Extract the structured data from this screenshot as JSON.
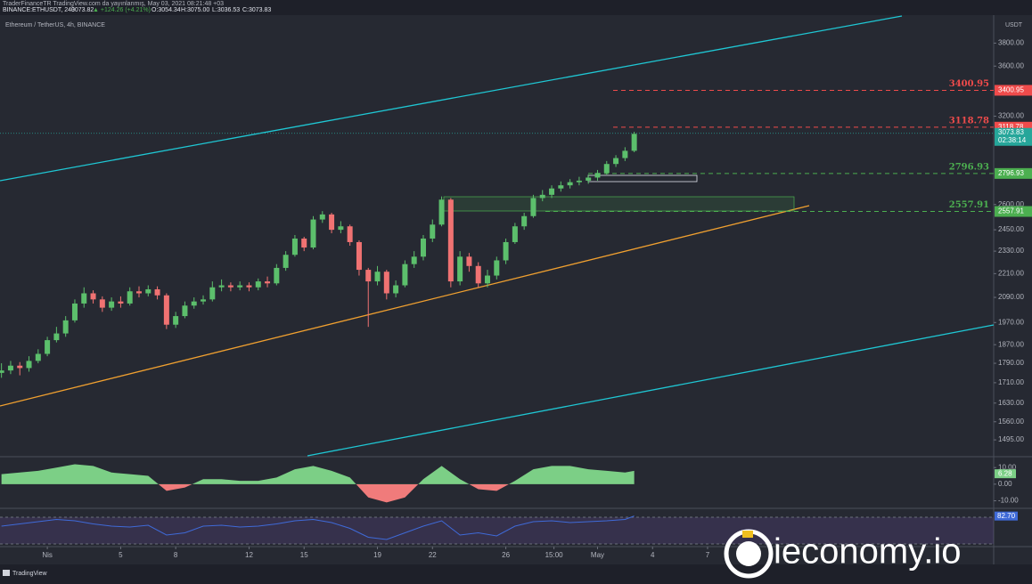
{
  "header": {
    "publisher": "TraderFinanceTR TradingView.com da yayınlanmış, May 03, 2021 08:21:48 +03",
    "symbol": "BINANCE:ETHUSDT, 240",
    "last": "3073.82",
    "change": "▲ +124.26 (+4.21%)",
    "open": "O:3054.34",
    "high": "H:3075.00",
    "low": "L:3036.53",
    "close": "C:3073.83"
  },
  "chart_data": {
    "type": "candlestick",
    "title": "Ethereum / TetherUS, 4h, BINANCE",
    "y_unit": "USDT",
    "log_scale": true,
    "grid": false,
    "up_color": "#5cbf6c",
    "down_color": "#f07272",
    "x": [
      -2.5,
      -2,
      -1.5,
      -1,
      -0.5,
      0,
      0.5,
      1,
      1.5,
      2,
      2.5,
      3,
      3.5,
      4,
      4.5,
      5,
      5.5,
      6,
      6.5,
      7,
      7.5,
      8,
      8.5,
      9,
      9.5,
      10,
      10.5,
      11,
      11.5,
      12,
      12.5,
      13,
      13.5,
      14,
      14.5,
      15,
      15.5,
      16,
      16.5,
      17,
      17.5,
      18,
      18.5,
      19,
      19.5,
      20,
      20.5,
      21,
      21.5,
      22,
      22.5,
      23,
      23.5,
      24,
      24.5,
      25,
      25.5,
      26,
      26.5,
      27,
      27.5,
      28,
      28.5,
      29,
      29.5,
      30,
      30.5,
      31,
      31.5,
      32
    ],
    "open": [
      1750,
      1760,
      1780,
      1770,
      1800,
      1830,
      1890,
      1920,
      1980,
      2060,
      2110,
      2080,
      2040,
      2070,
      2060,
      2120,
      2110,
      2130,
      2100,
      1960,
      2000,
      2050,
      2070,
      2080,
      2140,
      2150,
      2140,
      2150,
      2140,
      2170,
      2160,
      2240,
      2310,
      2400,
      2350,
      2510,
      2540,
      2450,
      2470,
      2380,
      2230,
      2170,
      2220,
      2110,
      2150,
      2260,
      2300,
      2400,
      2480,
      2630,
      2170,
      2300,
      2250,
      2160,
      2200,
      2280,
      2380,
      2470,
      2530,
      2640,
      2660,
      2700,
      2720,
      2740,
      2750,
      2770,
      2800,
      2860,
      2900,
      2950
    ],
    "high": [
      1790,
      1800,
      1795,
      1820,
      1850,
      1905,
      1950,
      2000,
      2080,
      2140,
      2125,
      2095,
      2090,
      2095,
      2140,
      2145,
      2150,
      2145,
      2110,
      2020,
      2070,
      2090,
      2100,
      2170,
      2180,
      2165,
      2170,
      2165,
      2185,
      2195,
      2260,
      2330,
      2420,
      2410,
      2530,
      2560,
      2550,
      2500,
      2480,
      2390,
      2240,
      2250,
      2230,
      2175,
      2280,
      2330,
      2420,
      2510,
      2650,
      2640,
      2330,
      2320,
      2270,
      2230,
      2300,
      2400,
      2490,
      2550,
      2660,
      2690,
      2720,
      2745,
      2760,
      2775,
      2790,
      2820,
      2880,
      2920,
      2975,
      3085
    ],
    "low": [
      1730,
      1745,
      1740,
      1755,
      1790,
      1820,
      1880,
      1905,
      1970,
      2040,
      2060,
      2020,
      2025,
      2040,
      2050,
      2090,
      2095,
      2080,
      1940,
      1945,
      1990,
      2035,
      2055,
      2070,
      2120,
      2120,
      2125,
      2120,
      2125,
      2140,
      2150,
      2225,
      2300,
      2330,
      2340,
      2490,
      2430,
      2430,
      2360,
      2200,
      1950,
      2150,
      2080,
      2090,
      2140,
      2240,
      2280,
      2380,
      2470,
      2140,
      2150,
      2220,
      2140,
      2140,
      2180,
      2260,
      2370,
      2450,
      2520,
      2620,
      2640,
      2680,
      2700,
      2720,
      2730,
      2750,
      2790,
      2840,
      2880,
      2940
    ],
    "close": [
      1760,
      1780,
      1770,
      1800,
      1830,
      1890,
      1920,
      1980,
      2060,
      2110,
      2080,
      2040,
      2070,
      2060,
      2120,
      2110,
      2130,
      2100,
      1960,
      2000,
      2050,
      2070,
      2080,
      2140,
      2150,
      2140,
      2150,
      2140,
      2170,
      2160,
      2240,
      2310,
      2400,
      2350,
      2510,
      2540,
      2450,
      2470,
      2380,
      2230,
      2170,
      2220,
      2110,
      2150,
      2260,
      2300,
      2400,
      2480,
      2630,
      2170,
      2300,
      2250,
      2160,
      2200,
      2280,
      2380,
      2470,
      2530,
      2640,
      2660,
      2700,
      2720,
      2740,
      2750,
      2770,
      2800,
      2860,
      2900,
      2950,
      3070
    ],
    "xlim": [
      -2.58,
      51.6
    ],
    "xticks": [
      {
        "value": 0,
        "label": "Nis"
      },
      {
        "value": 4,
        "label": "5"
      },
      {
        "value": 7,
        "label": "8"
      },
      {
        "value": 11,
        "label": "12"
      },
      {
        "value": 14,
        "label": "15"
      },
      {
        "value": 18,
        "label": "19"
      },
      {
        "value": 21,
        "label": "22"
      },
      {
        "value": 25,
        "label": "26"
      },
      {
        "value": 27.625,
        "label": "15:00"
      },
      {
        "value": 30,
        "label": "May"
      },
      {
        "value": 33,
        "label": "4"
      },
      {
        "value": 36,
        "label": "7"
      }
    ],
    "ylim": [
      1440,
      4050
    ],
    "yticks": [
      {
        "value": 3800,
        "label": "3800.00"
      },
      {
        "value": 3600,
        "label": "3600.00"
      },
      {
        "value": 3200,
        "label": "3200.00"
      },
      {
        "value": 2600,
        "label": "2600.00"
      },
      {
        "value": 2450,
        "label": "2450.00"
      },
      {
        "value": 2330,
        "label": "2330.00"
      },
      {
        "value": 2210,
        "label": "2210.00"
      },
      {
        "value": 2090,
        "label": "2090.00"
      },
      {
        "value": 1970,
        "label": "1970.00"
      },
      {
        "value": 1870,
        "label": "1870.00"
      },
      {
        "value": 1790,
        "label": "1790.00"
      },
      {
        "value": 1710,
        "label": "1710.00"
      },
      {
        "value": 1630,
        "label": "1630.00"
      },
      {
        "value": 1560,
        "label": "1560.00"
      },
      {
        "value": 1495,
        "label": "1495.00"
      }
    ],
    "levels": [
      {
        "value": 3400.95,
        "color": "#ef4b4b"
      },
      {
        "value": 3118.78,
        "color": "#ef4b4b"
      },
      {
        "value": 2796.93,
        "color": "#4caf50"
      },
      {
        "value": 2557.91,
        "color": "#4caf50"
      }
    ],
    "current_price": 3073.83,
    "countdown": "02:38:14",
    "price_color": "#26a69a",
    "oscillator": {
      "x": [
        -2.5,
        -1.5,
        -0.5,
        0.5,
        1.5,
        2.5,
        3.5,
        4.5,
        5.5,
        6.5,
        7.5,
        8.5,
        9.5,
        10.5,
        11.5,
        12.5,
        13.5,
        14.5,
        15.5,
        16.5,
        17.5,
        18.5,
        19.5,
        20.5,
        21.5,
        22.5,
        23.5,
        24.5,
        25.5,
        26.5,
        27.5,
        28.5,
        29.5,
        30.5,
        31.5,
        32
      ],
      "values": [
        6,
        7,
        8,
        10,
        12,
        11,
        7,
        6,
        5,
        -4,
        -2,
        3,
        3,
        2,
        2,
        4,
        9,
        11,
        8,
        4,
        -8,
        -11,
        -8,
        3,
        11,
        3,
        -3,
        -4,
        2,
        9,
        11,
        11,
        9,
        8,
        7,
        8
      ],
      "ylim": [
        -14,
        16
      ],
      "yticks": [
        {
          "value": 10,
          "label": "10.00"
        },
        {
          "value": 0,
          "label": "0.00"
        },
        {
          "value": -10,
          "label": "-10.00"
        }
      ],
      "current": 6.28,
      "up_color": "#7ccf86",
      "down_color": "#f07b7b"
    },
    "rsi": {
      "x": [
        -2.5,
        -1.5,
        -0.5,
        0.5,
        1.5,
        2.5,
        3.5,
        4.5,
        5.5,
        6.5,
        7.5,
        8.5,
        9.5,
        10.5,
        11.5,
        12.5,
        13.5,
        14.5,
        15.5,
        16.5,
        17.5,
        18.5,
        19.5,
        20.5,
        21.5,
        22.5,
        23.5,
        24.5,
        25.5,
        26.5,
        27.5,
        28.5,
        29.5,
        30.5,
        31.5,
        32
      ],
      "values": [
        60,
        65,
        70,
        75,
        72,
        65,
        60,
        58,
        62,
        40,
        45,
        60,
        62,
        58,
        60,
        65,
        72,
        75,
        68,
        55,
        35,
        30,
        45,
        60,
        72,
        40,
        45,
        38,
        60,
        70,
        72,
        68,
        70,
        72,
        75,
        82.7
      ],
      "ylim": [
        18,
        98
      ],
      "current": {
        "value": 82.7,
        "label": "82.70"
      },
      "color": "#3f6ad8"
    },
    "watermark": "ieconomy.io",
    "footer": "TradingView"
  }
}
